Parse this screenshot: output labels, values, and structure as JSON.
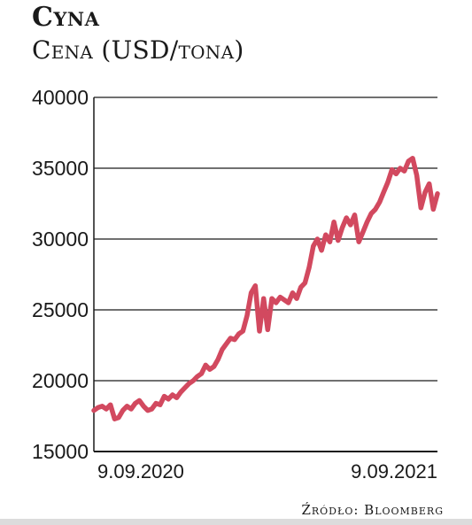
{
  "header": {
    "title": "Cyna",
    "subtitle": "Cena (USD/tona)"
  },
  "footer": {
    "source": "Źródło: Bloomberg"
  },
  "colors": {
    "line": "#d2495f",
    "grid": "#1a1a1a",
    "text": "#1a1a1a"
  },
  "chart_data": {
    "type": "line",
    "title": "Cyna",
    "subtitle": "Cena (USD/tona)",
    "xlabel": "",
    "ylabel": "",
    "ylim": [
      15000,
      40000
    ],
    "yticks": [
      15000,
      20000,
      25000,
      30000,
      35000,
      40000
    ],
    "yticklabels": [
      "15000",
      "20000",
      "25000",
      "30000",
      "35000",
      "40000"
    ],
    "xtick_labels": [
      {
        "index": 0,
        "label": "9.09.2020"
      },
      {
        "index": 100,
        "label": "9.09.2021"
      }
    ],
    "grid": "horizontal",
    "series": [
      {
        "values": [
          17900,
          18100,
          18200,
          18000,
          18300,
          17300,
          17400,
          17900,
          18200,
          18000,
          18400,
          18600,
          18200,
          17900,
          18000,
          18400,
          18300,
          18900,
          18700,
          19000,
          18800,
          19200,
          19500,
          19800,
          20000,
          20300,
          20500,
          21100,
          20800,
          21000,
          21500,
          22200,
          22600,
          23000,
          22900,
          23300,
          23500,
          24600,
          26200,
          26700,
          23500,
          25800,
          23600,
          25800,
          25500,
          25900,
          25700,
          25500,
          26200,
          25800,
          26600,
          26900,
          28000,
          29500,
          30000,
          29200,
          30300,
          29800,
          31200,
          29900,
          30800,
          31500,
          31000,
          31700,
          29800,
          30500,
          31200,
          31800,
          32100,
          32600,
          33300,
          34000,
          34900,
          34600,
          35000,
          34800,
          35500,
          35700,
          34500,
          32200,
          33300,
          33900,
          32100,
          33200
        ]
      }
    ]
  }
}
